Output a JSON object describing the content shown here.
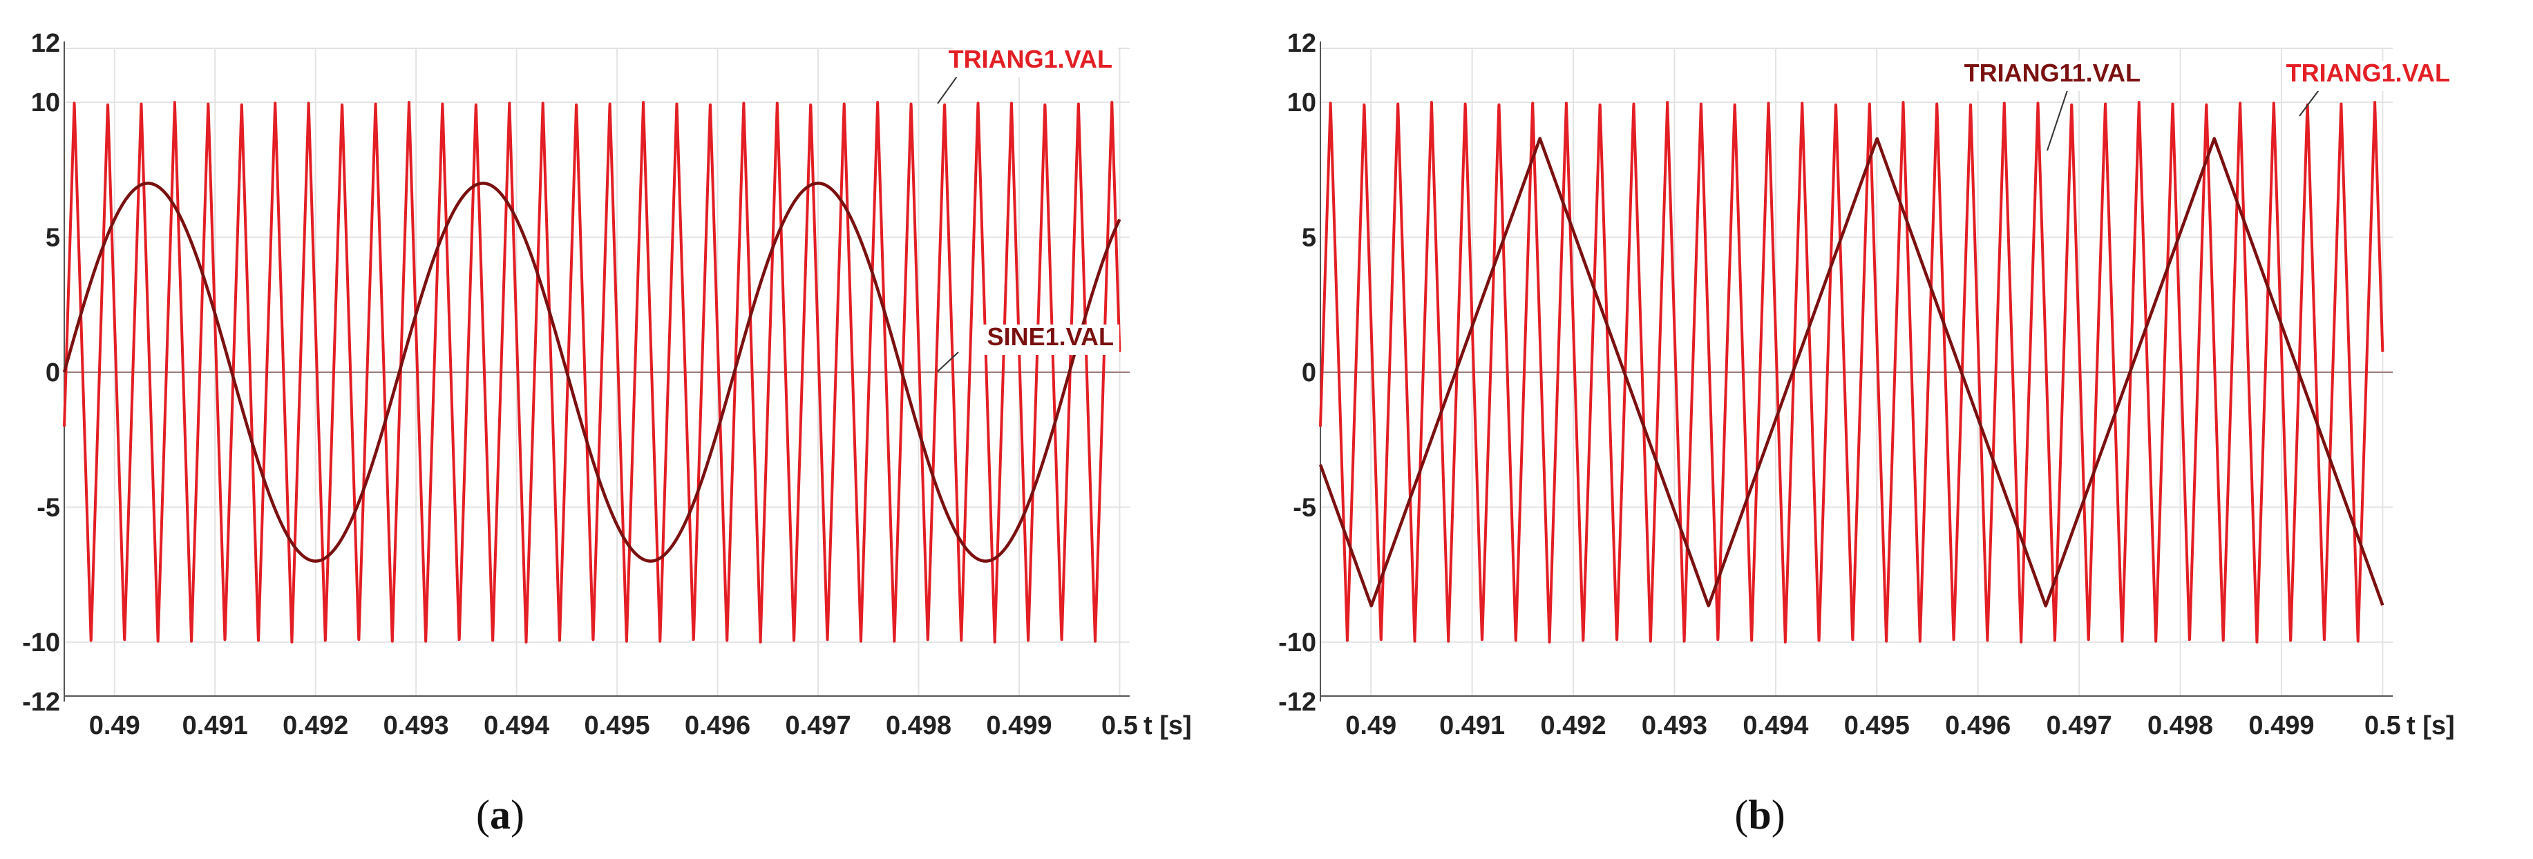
{
  "chart_data": [
    {
      "type": "line",
      "panel_label": "(a)",
      "panel_letter": "a",
      "xlabel": "t [s]",
      "x_ticks": [
        "0.49",
        "0.491",
        "0.492",
        "0.493",
        "0.494",
        "0.495",
        "0.496",
        "0.497",
        "0.498",
        "0.499",
        "0.5"
      ],
      "y_ticks": [
        "12",
        "10",
        "5",
        "0",
        "-5",
        "-10",
        "-12"
      ],
      "xlim": [
        0.4895,
        0.5001
      ],
      "ylim": [
        -12,
        12
      ],
      "grid": true,
      "series": [
        {
          "name": "TRIANG1.VAL",
          "kind": "triangle",
          "color": "#e31e24",
          "amplitude": 10,
          "period": 0.000333,
          "peak_at": 0.4896,
          "x_range": [
            0.4895,
            0.5
          ]
        },
        {
          "name": "SINE1.VAL",
          "kind": "sine",
          "color": "#7b1010",
          "amplitude": 7,
          "frequency_hz": 300,
          "phase_zero_at": 0.4895,
          "x_range": [
            0.4895,
            0.5
          ]
        }
      ]
    },
    {
      "type": "line",
      "panel_label": "(b)",
      "panel_letter": "b",
      "xlabel": "t [s]",
      "x_ticks": [
        "0.49",
        "0.491",
        "0.492",
        "0.493",
        "0.494",
        "0.495",
        "0.496",
        "0.497",
        "0.498",
        "0.499",
        "0.5"
      ],
      "y_ticks": [
        "12",
        "10",
        "5",
        "0",
        "-5",
        "-10",
        "-12"
      ],
      "xlim": [
        0.4895,
        0.5001
      ],
      "ylim": [
        -12,
        12
      ],
      "grid": true,
      "series": [
        {
          "name": "TRIANG1.VAL",
          "kind": "triangle",
          "color": "#e31e24",
          "amplitude": 10,
          "period": 0.000333,
          "peak_at": 0.4896,
          "x_range": [
            0.4895,
            0.5
          ]
        },
        {
          "name": "TRIANG11.VAL",
          "kind": "triangle",
          "color": "#7b1010",
          "amplitude": 8.66,
          "period": 0.003333,
          "peak_at": 0.49167,
          "x_range": [
            0.4895,
            0.5
          ]
        }
      ]
    }
  ]
}
